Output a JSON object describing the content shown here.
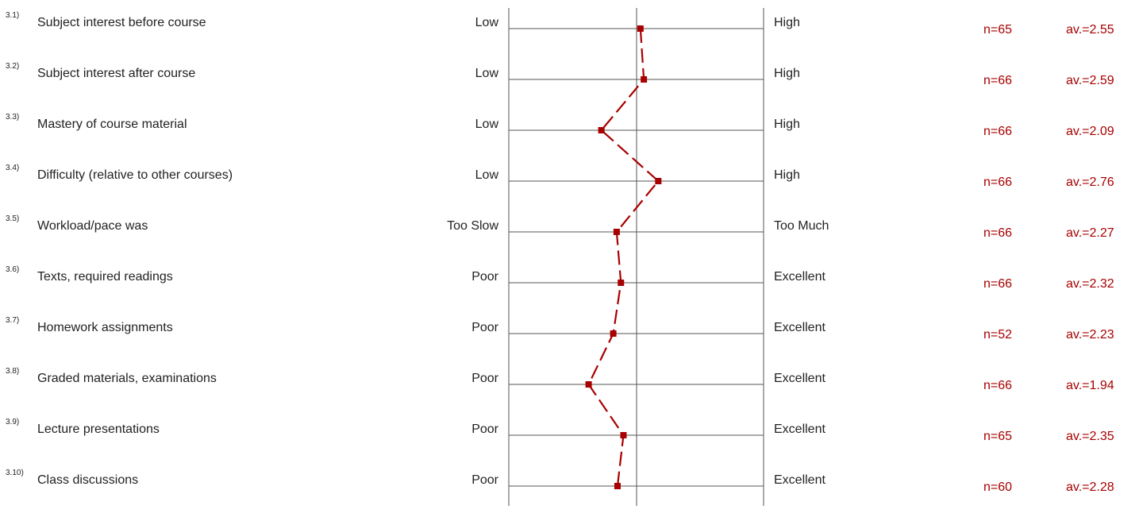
{
  "chart_data": {
    "type": "line",
    "scale_min": 1,
    "scale_max": 4,
    "grid": true,
    "line_color": "#a80000",
    "items": [
      {
        "number": "3.1)",
        "label": "Subject interest before course",
        "low": "Low",
        "high": "High",
        "n": "n=65",
        "avg_text": "av.=2.55",
        "value": 2.55
      },
      {
        "number": "3.2)",
        "label": "Subject interest after course",
        "low": "Low",
        "high": "High",
        "n": "n=66",
        "avg_text": "av.=2.59",
        "value": 2.59
      },
      {
        "number": "3.3)",
        "label": "Mastery of course material",
        "low": "Low",
        "high": "High",
        "n": "n=66",
        "avg_text": "av.=2.09",
        "value": 2.09
      },
      {
        "number": "3.4)",
        "label": "Difficulty (relative to other courses)",
        "low": "Low",
        "high": "High",
        "n": "n=66",
        "avg_text": "av.=2.76",
        "value": 2.76
      },
      {
        "number": "3.5)",
        "label": "Workload/pace was",
        "low": "Too Slow",
        "high": "Too Much",
        "n": "n=66",
        "avg_text": "av.=2.27",
        "value": 2.27
      },
      {
        "number": "3.6)",
        "label": "Texts, required readings",
        "low": "Poor",
        "high": "Excellent",
        "n": "n=66",
        "avg_text": "av.=2.32",
        "value": 2.32
      },
      {
        "number": "3.7)",
        "label": "Homework assignments",
        "low": "Poor",
        "high": "Excellent",
        "n": "n=52",
        "avg_text": "av.=2.23",
        "value": 2.23
      },
      {
        "number": "3.8)",
        "label": "Graded materials, examinations",
        "low": "Poor",
        "high": "Excellent",
        "n": "n=66",
        "avg_text": "av.=1.94",
        "value": 1.94
      },
      {
        "number": "3.9)",
        "label": "Lecture presentations",
        "low": "Poor",
        "high": "Excellent",
        "n": "n=65",
        "avg_text": "av.=2.35",
        "value": 2.35
      },
      {
        "number": "3.10)",
        "label": "Class discussions",
        "low": "Poor",
        "high": "Excellent",
        "n": "n=60",
        "avg_text": "av.=2.28",
        "value": 2.28
      }
    ]
  }
}
